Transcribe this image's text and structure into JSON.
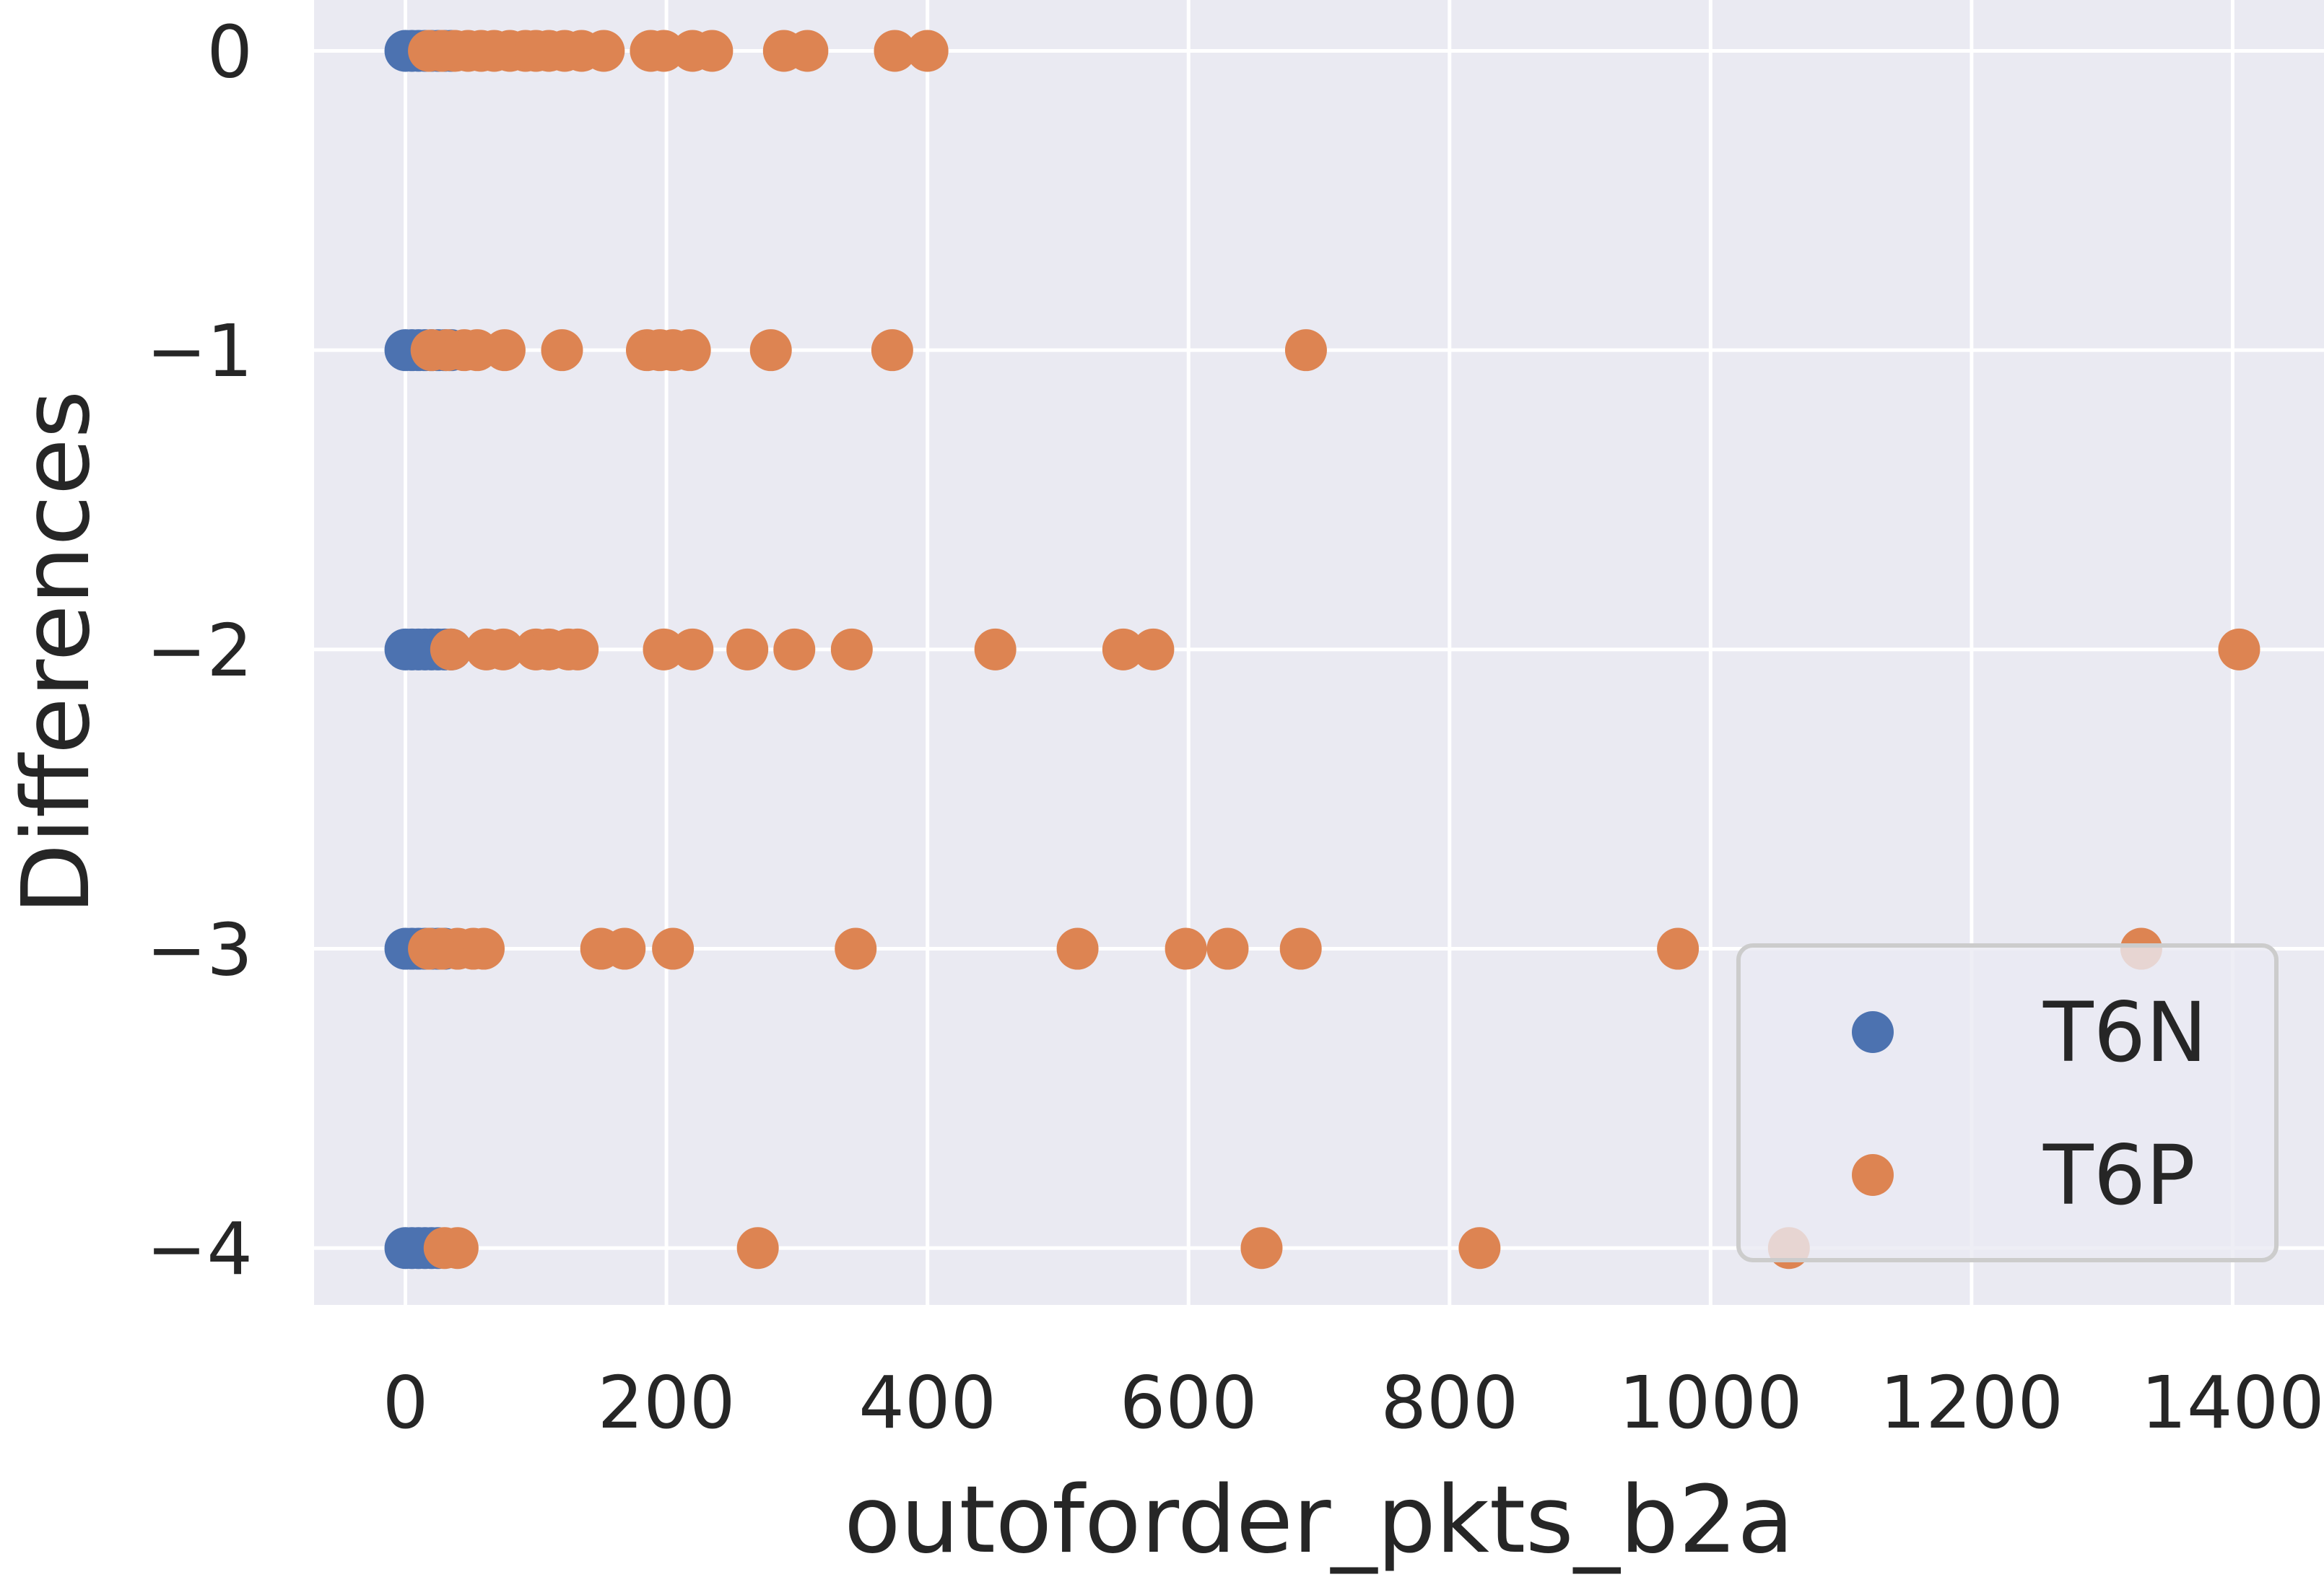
{
  "chart_data": {
    "type": "scatter",
    "title": "",
    "xlabel": "outoforder_pkts_b2a",
    "ylabel": "Differences",
    "xlim": [
      -70,
      1470
    ],
    "ylim": [
      -4.19,
      0.17
    ],
    "xticks": [
      0,
      200,
      400,
      600,
      800,
      1000,
      1200,
      1400
    ],
    "yticks": [
      0,
      -1,
      -2,
      -3,
      -4
    ],
    "xtick_labels": [
      "0",
      "200",
      "400",
      "600",
      "800",
      "1000",
      "1200",
      "1400"
    ],
    "ytick_labels": [
      "0",
      "−1",
      "−2",
      "−3",
      "−4"
    ],
    "grid": true,
    "background": "#eaeaf2",
    "legend_position": "lower right",
    "series": [
      {
        "name": "T6N",
        "color": "#4c72b0",
        "points": [
          {
            "x": 0,
            "y": 0
          },
          {
            "x": 5,
            "y": 0
          },
          {
            "x": 10,
            "y": 0
          },
          {
            "x": 15,
            "y": 0
          },
          {
            "x": 20,
            "y": 0
          },
          {
            "x": 25,
            "y": 0
          },
          {
            "x": 30,
            "y": 0
          },
          {
            "x": 35,
            "y": 0
          },
          {
            "x": 0,
            "y": -1
          },
          {
            "x": 5,
            "y": -1
          },
          {
            "x": 10,
            "y": -1
          },
          {
            "x": 15,
            "y": -1
          },
          {
            "x": 20,
            "y": -1
          },
          {
            "x": 25,
            "y": -1
          },
          {
            "x": 30,
            "y": -1
          },
          {
            "x": 35,
            "y": -1
          },
          {
            "x": 0,
            "y": -2
          },
          {
            "x": 5,
            "y": -2
          },
          {
            "x": 10,
            "y": -2
          },
          {
            "x": 15,
            "y": -2
          },
          {
            "x": 20,
            "y": -2
          },
          {
            "x": 25,
            "y": -2
          },
          {
            "x": 30,
            "y": -2
          },
          {
            "x": 35,
            "y": -2
          },
          {
            "x": 0,
            "y": -3
          },
          {
            "x": 5,
            "y": -3
          },
          {
            "x": 10,
            "y": -3
          },
          {
            "x": 15,
            "y": -3
          },
          {
            "x": 20,
            "y": -3
          },
          {
            "x": 25,
            "y": -3
          },
          {
            "x": 30,
            "y": -3
          },
          {
            "x": 0,
            "y": -4
          },
          {
            "x": 5,
            "y": -4
          },
          {
            "x": 10,
            "y": -4
          },
          {
            "x": 15,
            "y": -4
          },
          {
            "x": 20,
            "y": -4
          },
          {
            "x": 25,
            "y": -4
          }
        ]
      },
      {
        "name": "T6P",
        "color": "#dd8452",
        "points": [
          {
            "x": 18,
            "y": 0
          },
          {
            "x": 28,
            "y": 0
          },
          {
            "x": 38,
            "y": 0
          },
          {
            "x": 48,
            "y": 0
          },
          {
            "x": 58,
            "y": 0
          },
          {
            "x": 68,
            "y": 0
          },
          {
            "x": 80,
            "y": 0
          },
          {
            "x": 92,
            "y": 0
          },
          {
            "x": 100,
            "y": 0
          },
          {
            "x": 110,
            "y": 0
          },
          {
            "x": 122,
            "y": 0
          },
          {
            "x": 135,
            "y": 0
          },
          {
            "x": 152,
            "y": 0
          },
          {
            "x": 188,
            "y": 0
          },
          {
            "x": 198,
            "y": 0
          },
          {
            "x": 220,
            "y": 0
          },
          {
            "x": 235,
            "y": 0
          },
          {
            "x": 290,
            "y": 0
          },
          {
            "x": 308,
            "y": 0
          },
          {
            "x": 375,
            "y": 0
          },
          {
            "x": 400,
            "y": 0
          },
          {
            "x": 20,
            "y": -1
          },
          {
            "x": 32,
            "y": -1
          },
          {
            "x": 45,
            "y": -1
          },
          {
            "x": 55,
            "y": -1
          },
          {
            "x": 76,
            "y": -1
          },
          {
            "x": 120,
            "y": -1
          },
          {
            "x": 185,
            "y": -1
          },
          {
            "x": 195,
            "y": -1
          },
          {
            "x": 205,
            "y": -1
          },
          {
            "x": 218,
            "y": -1
          },
          {
            "x": 280,
            "y": -1
          },
          {
            "x": 373,
            "y": -1
          },
          {
            "x": 690,
            "y": -1
          },
          {
            "x": 35,
            "y": -2
          },
          {
            "x": 62,
            "y": -2
          },
          {
            "x": 75,
            "y": -2
          },
          {
            "x": 100,
            "y": -2
          },
          {
            "x": 110,
            "y": -2
          },
          {
            "x": 125,
            "y": -2
          },
          {
            "x": 132,
            "y": -2
          },
          {
            "x": 198,
            "y": -2
          },
          {
            "x": 220,
            "y": -2
          },
          {
            "x": 262,
            "y": -2
          },
          {
            "x": 298,
            "y": -2
          },
          {
            "x": 342,
            "y": -2
          },
          {
            "x": 452,
            "y": -2
          },
          {
            "x": 550,
            "y": -2
          },
          {
            "x": 573,
            "y": -2
          },
          {
            "x": 1405,
            "y": -2
          },
          {
            "x": 18,
            "y": -3
          },
          {
            "x": 28,
            "y": -3
          },
          {
            "x": 40,
            "y": -3
          },
          {
            "x": 52,
            "y": -3
          },
          {
            "x": 60,
            "y": -3
          },
          {
            "x": 150,
            "y": -3
          },
          {
            "x": 168,
            "y": -3
          },
          {
            "x": 205,
            "y": -3
          },
          {
            "x": 345,
            "y": -3
          },
          {
            "x": 515,
            "y": -3
          },
          {
            "x": 598,
            "y": -3
          },
          {
            "x": 630,
            "y": -3
          },
          {
            "x": 686,
            "y": -3
          },
          {
            "x": 975,
            "y": -3
          },
          {
            "x": 1330,
            "y": -3
          },
          {
            "x": 30,
            "y": -4
          },
          {
            "x": 40,
            "y": -4
          },
          {
            "x": 270,
            "y": -4
          },
          {
            "x": 656,
            "y": -4
          },
          {
            "x": 823,
            "y": -4
          },
          {
            "x": 1060,
            "y": -4
          }
        ]
      }
    ]
  }
}
